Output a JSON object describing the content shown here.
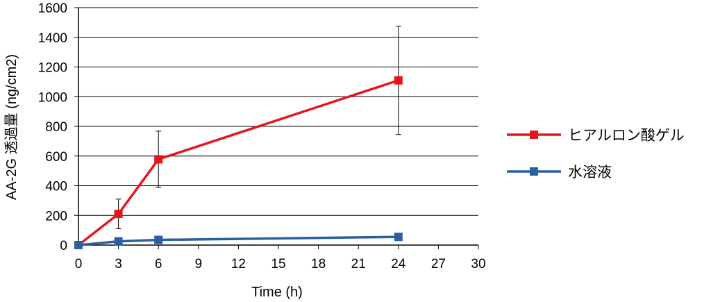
{
  "chart_data": {
    "type": "line",
    "title": "",
    "xlabel": "Time (h)",
    "ylabel": "AA-2G 透過量 (ng/cm2)",
    "xlim": [
      0,
      30
    ],
    "ylim": [
      0,
      1600
    ],
    "x_ticks": [
      0,
      3,
      6,
      9,
      12,
      15,
      18,
      21,
      24,
      27,
      30
    ],
    "y_ticks": [
      0,
      200,
      400,
      600,
      800,
      1000,
      1200,
      1400,
      1600
    ],
    "grid": "horizontal",
    "legend_position": "right",
    "series": [
      {
        "name": "ヒアルロン酸ゲル",
        "color": "#e8141c",
        "marker": "square",
        "x": [
          0,
          3,
          6,
          24
        ],
        "y": [
          0,
          210,
          578,
          1110
        ],
        "error": [
          0,
          100,
          190,
          365
        ]
      },
      {
        "name": "水溶液",
        "color": "#2b5ea3",
        "marker": "square",
        "x": [
          0,
          3,
          6,
          24
        ],
        "y": [
          0,
          25,
          35,
          55
        ],
        "error": [
          0,
          0,
          0,
          0
        ]
      }
    ]
  }
}
